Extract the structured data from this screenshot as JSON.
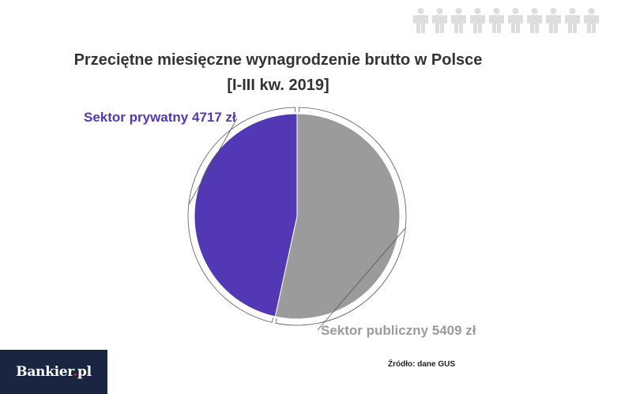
{
  "title": {
    "line1": "Przeciętne miesięczne wynagrodzenie brutto w Polsce",
    "line2": "[I-III kw. 2019]"
  },
  "chart_data": {
    "type": "pie",
    "title": "Przeciętne miesięczne wynagrodzenie brutto w Polsce [I-III kw. 2019]",
    "slices": [
      {
        "name": "Sektor publiczny",
        "value": 5409,
        "unit": "zł",
        "label": "Sektor publiczny 5409 zł",
        "color": "#9b9b9b"
      },
      {
        "name": "Sektor prywatny",
        "value": 4717,
        "unit": "zł",
        "label": "Sektor prywatny 4717 zł",
        "color": "#5338b5"
      }
    ],
    "start_angle": "12 o'clock",
    "direction": "clockwise",
    "legend": "none"
  },
  "source": "Źródło: dane GUS",
  "logo": {
    "name": "Bankier",
    "dot": ".",
    "tld": "pl",
    "background": "#1a2541",
    "dot_color": "#d62b2b"
  },
  "decoration": {
    "people_count": 10,
    "people_color": "#dddddd",
    "icon": "person-icon"
  }
}
